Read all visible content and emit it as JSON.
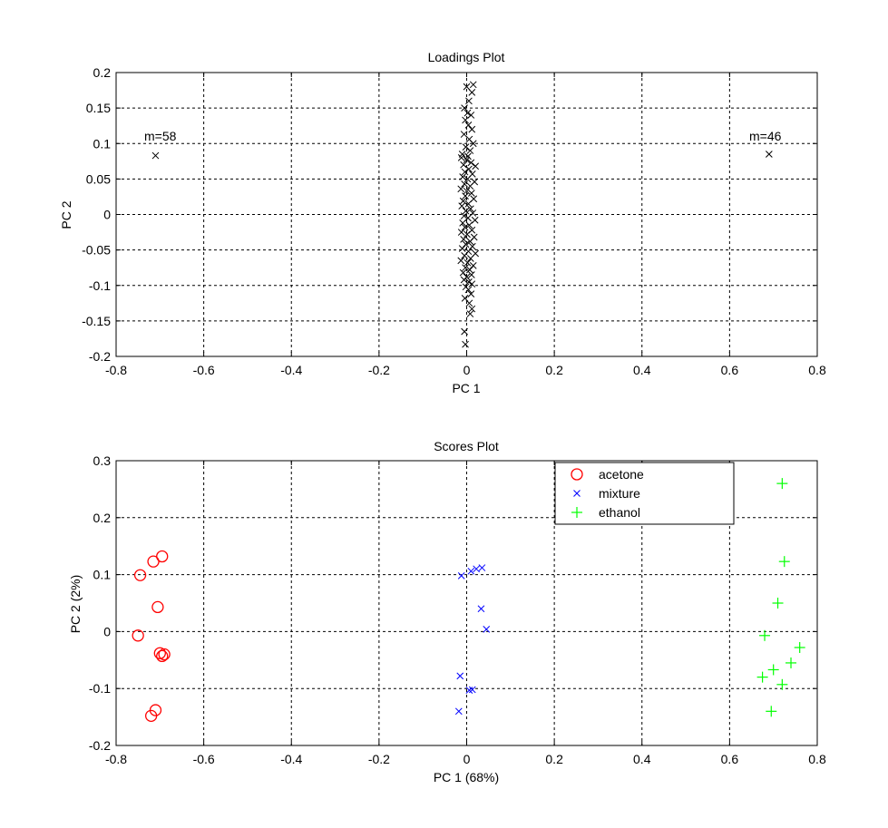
{
  "chart_data": [
    {
      "type": "scatter",
      "title": "Loadings Plot",
      "xlabel": "PC 1",
      "ylabel": "PC 2",
      "xlim": [
        -0.8,
        0.8
      ],
      "ylim": [
        -0.2,
        0.2
      ],
      "xticks": [
        -0.8,
        -0.6,
        -0.4,
        -0.2,
        0,
        0.2,
        0.4,
        0.6,
        0.8
      ],
      "yticks": [
        -0.2,
        -0.15,
        -0.1,
        -0.05,
        0,
        0.05,
        0.1,
        0.15,
        0.2
      ],
      "xtick_labels": [
        "-0.8",
        "-0.6",
        "-0.4",
        "-0.2",
        "0",
        "0.2",
        "0.4",
        "0.6",
        "0.8"
      ],
      "ytick_labels": [
        "-0.2",
        "-0.15",
        "-0.1",
        "-0.05",
        "0",
        "0.05",
        "0.1",
        "0.15",
        "0.2"
      ],
      "grid": true,
      "series": [
        {
          "marker": "x",
          "color": "#000000",
          "points": [
            [
              -0.71,
              0.083
            ],
            [
              0.69,
              0.085
            ],
            [
              0.0,
              0.18
            ],
            [
              0.015,
              0.183
            ],
            [
              0.012,
              0.172
            ],
            [
              0.005,
              0.16
            ],
            [
              -0.005,
              0.15
            ],
            [
              0.002,
              0.143
            ],
            [
              0.01,
              0.14
            ],
            [
              -0.003,
              0.133
            ],
            [
              0.004,
              0.126
            ],
            [
              0.012,
              0.12
            ],
            [
              -0.006,
              0.113
            ],
            [
              0.006,
              0.106
            ],
            [
              0.015,
              0.1
            ],
            [
              -0.002,
              0.095
            ],
            [
              0.008,
              0.09
            ],
            [
              -0.01,
              0.085
            ],
            [
              0.003,
              0.082
            ],
            [
              -0.012,
              0.08
            ],
            [
              0.0,
              0.077
            ],
            [
              0.01,
              0.073
            ],
            [
              -0.007,
              0.07
            ],
            [
              0.02,
              0.068
            ],
            [
              0.005,
              0.064
            ],
            [
              -0.004,
              0.06
            ],
            [
              0.013,
              0.057
            ],
            [
              -0.009,
              0.053
            ],
            [
              0.002,
              0.05
            ],
            [
              0.018,
              0.046
            ],
            [
              -0.005,
              0.043
            ],
            [
              0.008,
              0.04
            ],
            [
              -0.013,
              0.036
            ],
            [
              0.0,
              0.033
            ],
            [
              0.011,
              0.03
            ],
            [
              -0.003,
              0.026
            ],
            [
              0.016,
              0.022
            ],
            [
              -0.008,
              0.019
            ],
            [
              0.004,
              0.015
            ],
            [
              -0.011,
              0.012
            ],
            [
              0.009,
              0.008
            ],
            [
              -0.002,
              0.005
            ],
            [
              0.014,
              0.002
            ],
            [
              -0.006,
              -0.002
            ],
            [
              0.003,
              -0.005
            ],
            [
              0.019,
              -0.008
            ],
            [
              -0.009,
              -0.012
            ],
            [
              0.006,
              -0.015
            ],
            [
              -0.004,
              -0.018
            ],
            [
              0.012,
              -0.022
            ],
            [
              -0.012,
              -0.025
            ],
            [
              0.001,
              -0.028
            ],
            [
              0.017,
              -0.032
            ],
            [
              -0.007,
              -0.035
            ],
            [
              0.008,
              -0.038
            ],
            [
              -0.002,
              -0.042
            ],
            [
              0.013,
              -0.045
            ],
            [
              -0.01,
              -0.048
            ],
            [
              0.004,
              -0.052
            ],
            [
              0.02,
              -0.055
            ],
            [
              -0.005,
              -0.058
            ],
            [
              0.009,
              -0.062
            ],
            [
              -0.013,
              -0.065
            ],
            [
              0.002,
              -0.068
            ],
            [
              0.015,
              -0.072
            ],
            [
              -0.003,
              -0.075
            ],
            [
              0.007,
              -0.078
            ],
            [
              -0.008,
              -0.082
            ],
            [
              0.011,
              -0.085
            ],
            [
              0.0,
              -0.088
            ],
            [
              -0.006,
              -0.092
            ],
            [
              0.005,
              -0.095
            ],
            [
              0.012,
              -0.098
            ],
            [
              -0.002,
              -0.102
            ],
            [
              0.004,
              -0.106
            ],
            [
              0.01,
              -0.112
            ],
            [
              -0.004,
              -0.118
            ],
            [
              0.006,
              -0.125
            ],
            [
              0.012,
              -0.133
            ],
            [
              0.008,
              -0.14
            ],
            [
              -0.005,
              -0.165
            ],
            [
              -0.003,
              -0.183
            ]
          ]
        }
      ],
      "annotations": [
        {
          "text": "m=58",
          "x": -0.77,
          "y": 0.105
        },
        {
          "text": "m=46",
          "x": 0.64,
          "y": 0.105
        }
      ]
    },
    {
      "type": "scatter",
      "title": "Scores Plot",
      "xlabel": "PC 1 (68%)",
      "ylabel": "PC 2 (2%)",
      "xlim": [
        -0.8,
        0.8
      ],
      "ylim": [
        -0.2,
        0.3
      ],
      "xticks": [
        -0.8,
        -0.6,
        -0.4,
        -0.2,
        0,
        0.2,
        0.4,
        0.6,
        0.8
      ],
      "yticks": [
        -0.2,
        -0.1,
        0,
        0.1,
        0.2,
        0.3
      ],
      "xtick_labels": [
        "-0.8",
        "-0.6",
        "-0.4",
        "-0.2",
        "0",
        "0.2",
        "0.4",
        "0.6",
        "0.8"
      ],
      "ytick_labels": [
        "-0.2",
        "-0.1",
        "0",
        "0.1",
        "0.2",
        "0.3"
      ],
      "grid": true,
      "legend": {
        "placement": "top-right"
      },
      "series": [
        {
          "name": "acetone",
          "marker": "o",
          "color": "#ff0000",
          "points": [
            [
              -0.695,
              0.132
            ],
            [
              -0.715,
              0.123
            ],
            [
              -0.745,
              0.099
            ],
            [
              -0.705,
              0.043
            ],
            [
              -0.75,
              -0.007
            ],
            [
              -0.7,
              -0.038
            ],
            [
              -0.69,
              -0.04
            ],
            [
              -0.695,
              -0.043
            ],
            [
              -0.71,
              -0.138
            ],
            [
              -0.72,
              -0.148
            ]
          ]
        },
        {
          "name": "mixture",
          "marker": "x",
          "color": "#0000ff",
          "points": [
            [
              0.035,
              0.112
            ],
            [
              0.022,
              0.11
            ],
            [
              0.01,
              0.106
            ],
            [
              -0.012,
              0.098
            ],
            [
              0.033,
              0.04
            ],
            [
              0.045,
              0.004
            ],
            [
              -0.015,
              -0.078
            ],
            [
              0.013,
              -0.102
            ],
            [
              0.006,
              -0.103
            ],
            [
              -0.018,
              -0.14
            ]
          ]
        },
        {
          "name": "ethanol",
          "marker": "+",
          "color": "#00ff00",
          "points": [
            [
              0.72,
              0.26
            ],
            [
              0.725,
              0.123
            ],
            [
              0.71,
              0.05
            ],
            [
              0.68,
              -0.007
            ],
            [
              0.76,
              -0.028
            ],
            [
              0.74,
              -0.055
            ],
            [
              0.7,
              -0.067
            ],
            [
              0.675,
              -0.08
            ],
            [
              0.72,
              -0.093
            ],
            [
              0.695,
              -0.14
            ]
          ]
        }
      ]
    }
  ]
}
